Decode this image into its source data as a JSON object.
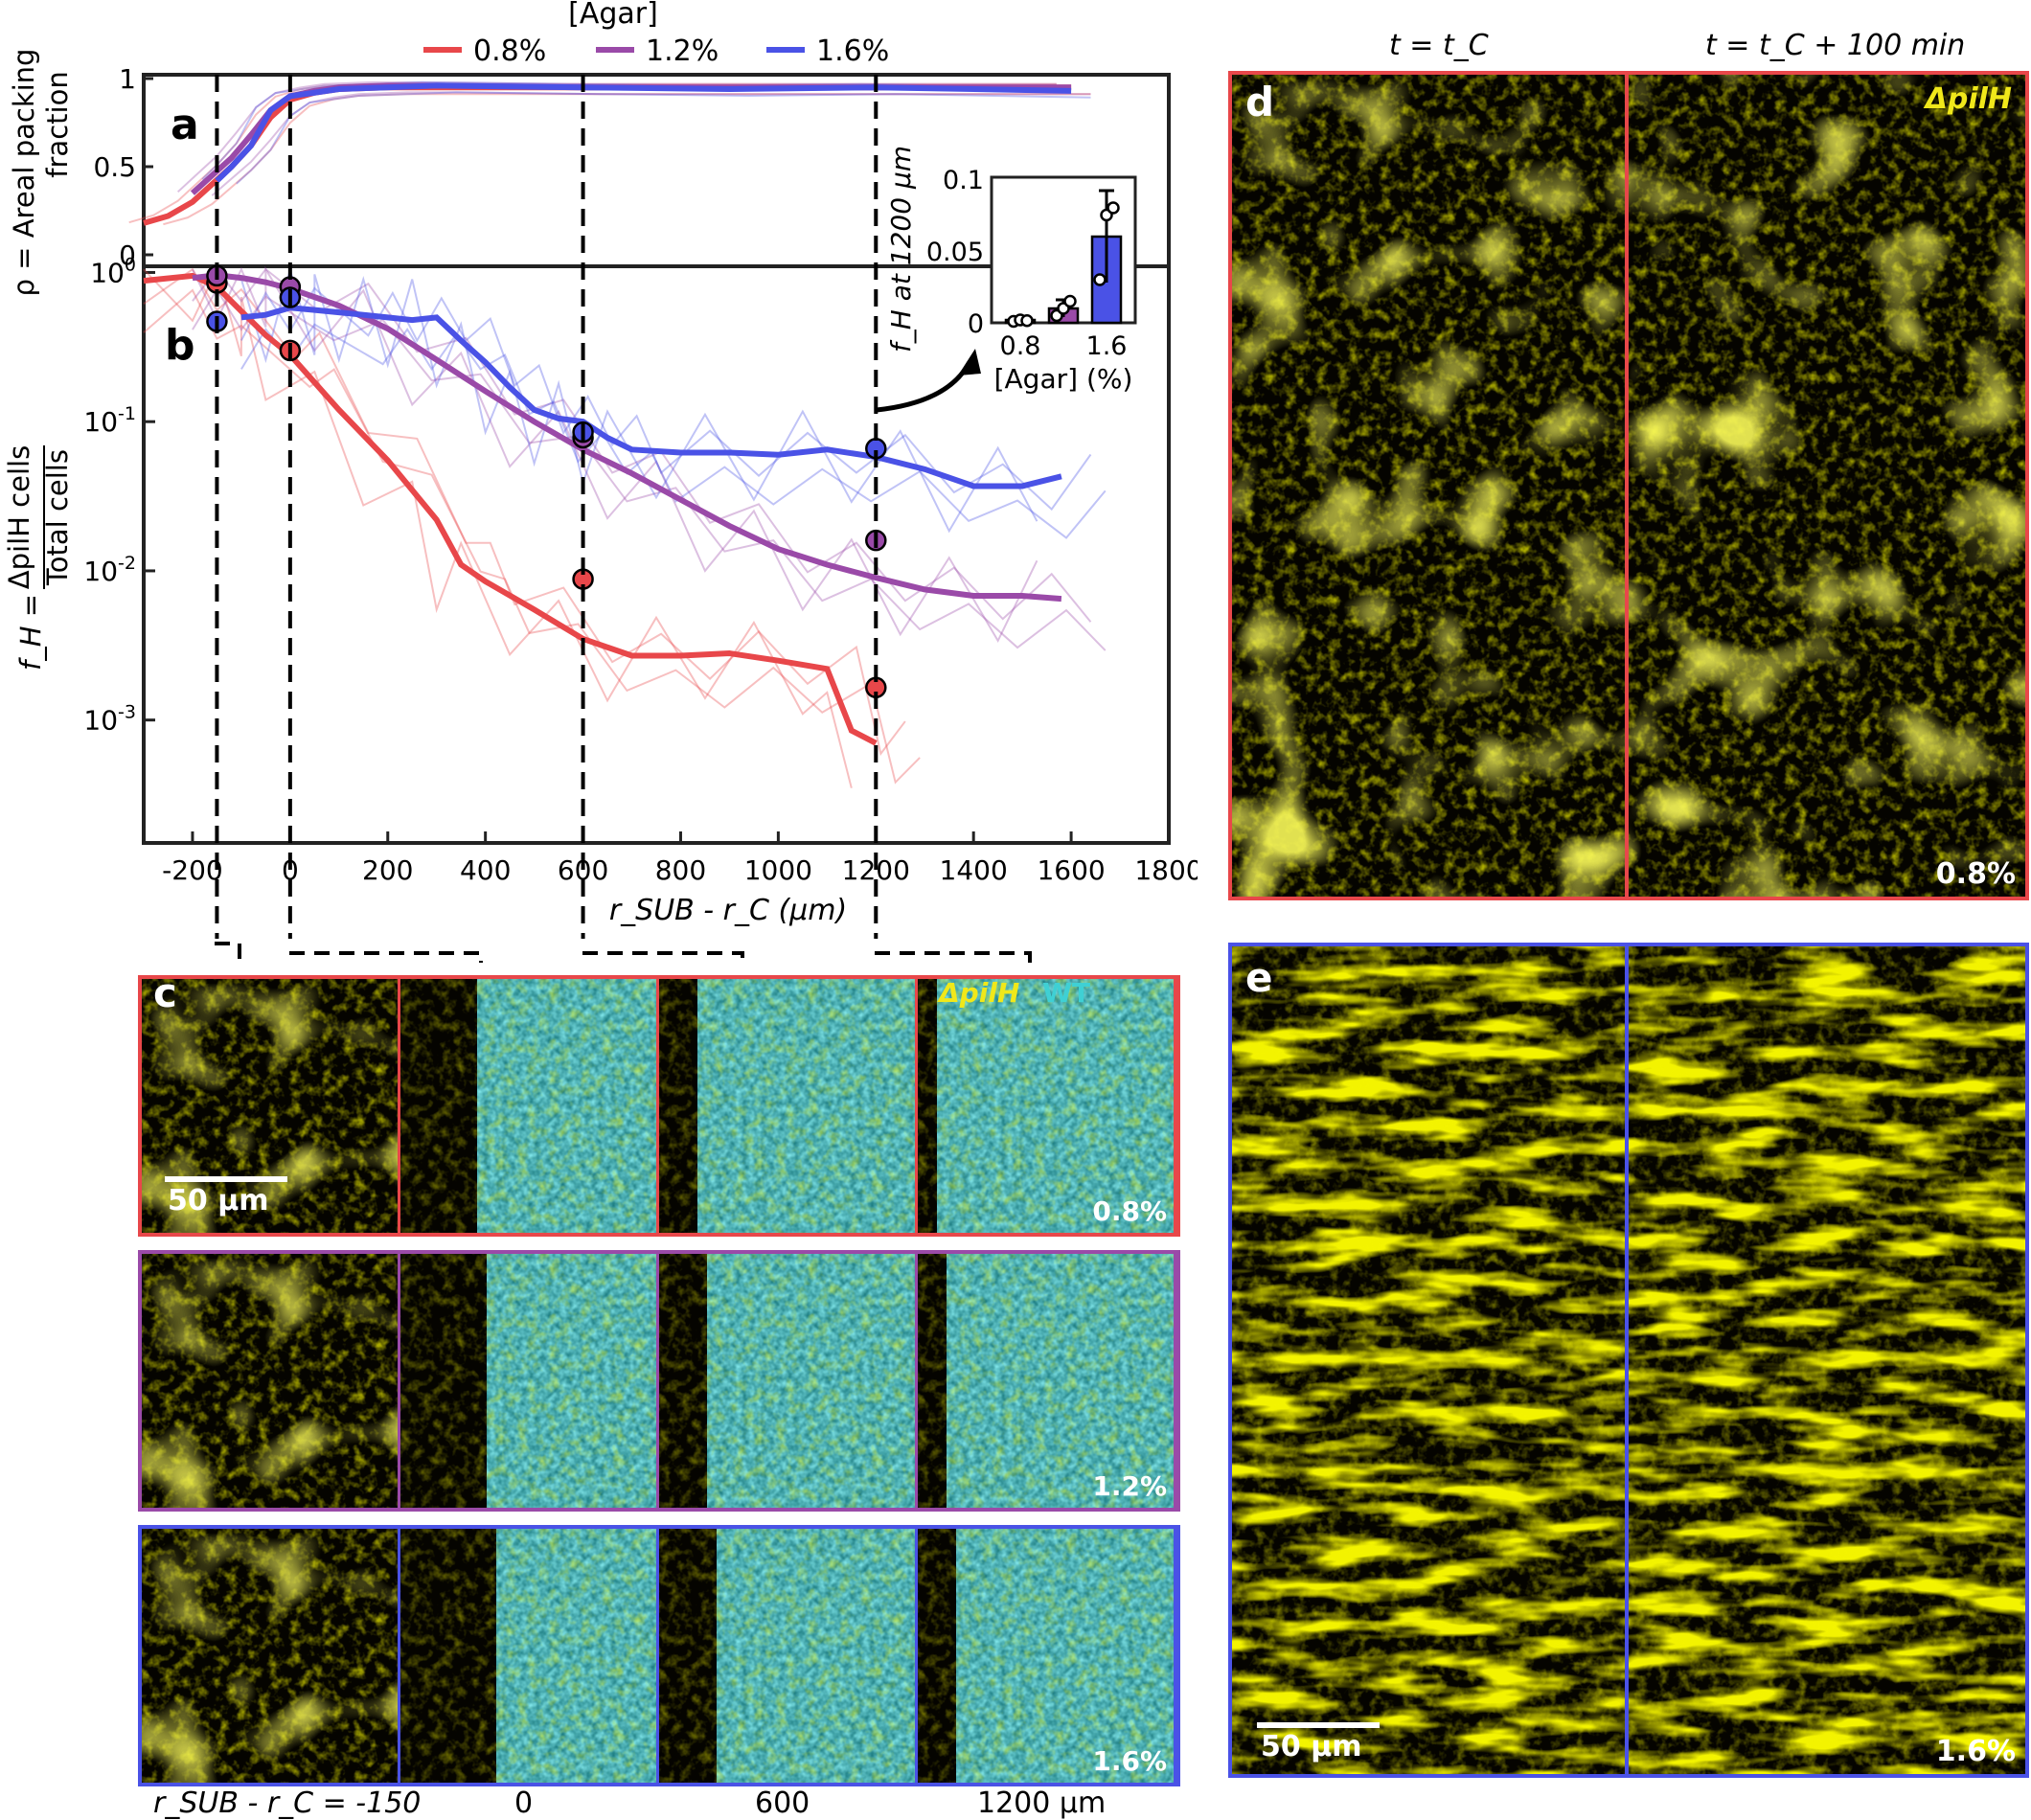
{
  "colors": {
    "agar_0_8": "#e8474a",
    "agar_1_2": "#9a4aa8",
    "agar_1_6": "#4a52e6",
    "pilH_yellow": "#e6e600",
    "wt_cyan": "#3fd0d4"
  },
  "legend": {
    "title": "[Agar]",
    "entries": [
      "0.8%",
      "1.2%",
      "1.6%"
    ]
  },
  "chart_data": [
    {
      "panel": "a",
      "type": "line",
      "ylabel_line1": "ρ = Areal packing",
      "ylabel_line2": "fraction",
      "xlim": [
        -300,
        1800
      ],
      "ylim": [
        0,
        1
      ],
      "yticks": [
        "0",
        "0.5",
        "1"
      ],
      "series": [
        {
          "name": "0.8%",
          "x": [
            -300,
            -250,
            -200,
            -160,
            -120,
            -80,
            -40,
            0,
            50,
            100,
            200,
            300,
            600,
            900,
            1200,
            1600
          ],
          "y": [
            0.18,
            0.22,
            0.3,
            0.4,
            0.5,
            0.62,
            0.78,
            0.88,
            0.92,
            0.94,
            0.95,
            0.95,
            0.95,
            0.95,
            0.95,
            0.95
          ]
        },
        {
          "name": "1.2%",
          "x": [
            -200,
            -160,
            -120,
            -80,
            -40,
            0,
            50,
            100,
            200,
            300,
            600,
            900,
            1200,
            1600
          ],
          "y": [
            0.35,
            0.45,
            0.55,
            0.68,
            0.82,
            0.9,
            0.93,
            0.95,
            0.96,
            0.96,
            0.95,
            0.95,
            0.95,
            0.95
          ]
        },
        {
          "name": "1.6%",
          "x": [
            -150,
            -120,
            -80,
            -40,
            0,
            50,
            100,
            200,
            300,
            600,
            900,
            1200,
            1600
          ],
          "y": [
            0.42,
            0.5,
            0.62,
            0.82,
            0.9,
            0.92,
            0.94,
            0.95,
            0.96,
            0.95,
            0.94,
            0.95,
            0.93
          ]
        }
      ]
    },
    {
      "panel": "b",
      "type": "line",
      "yscale": "log",
      "ylabel_line1": "f_H =",
      "ylabel_numerator": "ΔpilH cells",
      "ylabel_denominator": "Total cells",
      "xlabel": "r_SUB - r_C (μm)",
      "xlim": [
        -300,
        1800
      ],
      "ylim": [
        0.00015,
        1.1
      ],
      "yticks": [
        "10^0",
        "10^-1",
        "10^-2",
        "10^-3"
      ],
      "xticks": [
        "-200",
        "0",
        "200",
        "400",
        "600",
        "800",
        "1000",
        "1200",
        "1400",
        "1600",
        "1800"
      ],
      "series": [
        {
          "name": "0.8%",
          "x": [
            -300,
            -200,
            -150,
            -100,
            -50,
            0,
            100,
            200,
            300,
            350,
            400,
            500,
            600,
            700,
            800,
            900,
            1000,
            1100,
            1150,
            1200
          ],
          "y": [
            0.88,
            0.95,
            0.8,
            0.55,
            0.38,
            0.28,
            0.12,
            0.055,
            0.022,
            0.011,
            0.0085,
            0.0055,
            0.0035,
            0.0027,
            0.0027,
            0.0028,
            0.0025,
            0.0022,
            0.00085,
            0.0007
          ]
        },
        {
          "name": "1.2%",
          "x": [
            -200,
            -150,
            -100,
            -50,
            0,
            100,
            200,
            300,
            400,
            500,
            600,
            700,
            800,
            900,
            1000,
            1100,
            1200,
            1300,
            1400,
            1500,
            1580
          ],
          "y": [
            0.92,
            0.96,
            0.92,
            0.86,
            0.78,
            0.6,
            0.42,
            0.26,
            0.16,
            0.1,
            0.065,
            0.045,
            0.03,
            0.02,
            0.014,
            0.011,
            0.009,
            0.0075,
            0.0068,
            0.0068,
            0.0065
          ]
        },
        {
          "name": "1.6%",
          "x": [
            -100,
            -50,
            0,
            50,
            100,
            150,
            200,
            250,
            300,
            350,
            400,
            450,
            500,
            550,
            600,
            650,
            700,
            800,
            900,
            1000,
            1100,
            1200,
            1300,
            1400,
            1500,
            1580
          ],
          "y": [
            0.5,
            0.52,
            0.58,
            0.56,
            0.54,
            0.52,
            0.5,
            0.48,
            0.5,
            0.35,
            0.25,
            0.17,
            0.12,
            0.105,
            0.1,
            0.078,
            0.065,
            0.062,
            0.062,
            0.06,
            0.065,
            0.058,
            0.048,
            0.037,
            0.037,
            0.043
          ]
        }
      ],
      "markers": [
        {
          "series": "0.8%",
          "x": -150,
          "y": 0.85
        },
        {
          "series": "0.8%",
          "x": 0,
          "y": 0.3
        },
        {
          "series": "0.8%",
          "x": 600,
          "y": 0.0088
        },
        {
          "series": "0.8%",
          "x": 1200,
          "y": 0.00165
        },
        {
          "series": "1.2%",
          "x": -150,
          "y": 0.95
        },
        {
          "series": "1.2%",
          "x": 0,
          "y": 0.8
        },
        {
          "series": "1.2%",
          "x": 600,
          "y": 0.078
        },
        {
          "series": "1.2%",
          "x": 1200,
          "y": 0.016
        },
        {
          "series": "1.6%",
          "x": -150,
          "y": 0.47
        },
        {
          "series": "1.6%",
          "x": 0,
          "y": 0.68
        },
        {
          "series": "1.6%",
          "x": 600,
          "y": 0.085
        },
        {
          "series": "1.6%",
          "x": 1200,
          "y": 0.066
        }
      ],
      "dashed_markers_x": [
        -150,
        0,
        600,
        1200
      ]
    },
    {
      "panel": "inset",
      "type": "bar",
      "ylabel": "f_H at 1200 μm",
      "xlabel": "[Agar] (%)",
      "categories": [
        "0.8",
        "1.2",
        "1.6"
      ],
      "xtick_labels": [
        "0.8",
        "1.6"
      ],
      "values": [
        0.002,
        0.01,
        0.06
      ],
      "errors": [
        0.001,
        0.006,
        0.032
      ],
      "points": [
        [
          0.001,
          0.002,
          0.0015
        ],
        [
          0.005,
          0.01,
          0.015
        ],
        [
          0.03,
          0.075,
          0.08
        ]
      ],
      "ylim": [
        0,
        0.1
      ],
      "yticks": [
        "0",
        "0.05",
        "0.1"
      ]
    }
  ],
  "panel_c": {
    "letter": "c",
    "scale_bar": "50 μm",
    "legend_pilH": "ΔpilH",
    "legend_wt": "WT",
    "row_labels": [
      "0.8%",
      "1.2%",
      "1.6%"
    ],
    "col_labels": [
      "r_SUB - r_C = -150",
      "0",
      "600",
      "1200 μm"
    ]
  },
  "panel_d": {
    "letter": "d",
    "time_left": "t = t_C",
    "time_right": "t = t_C + 100 min",
    "strain": "ΔpilH",
    "label": "0.8%"
  },
  "panel_e": {
    "letter": "e",
    "scale_bar": "50 μm",
    "label": "1.6%"
  }
}
